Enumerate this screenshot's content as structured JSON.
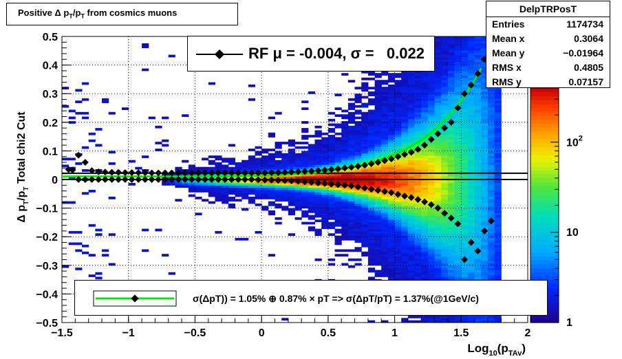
{
  "title": "Positive Δ p_{T}/p_{T} from cosmics muons",
  "stats": {
    "name": "DelpTRPosT",
    "rows": [
      {
        "label": "Entries",
        "value": "1174734"
      },
      {
        "label": "Mean x",
        "value": "0.3064"
      },
      {
        "label": "Mean y",
        "value": "−0.01964"
      },
      {
        "label": "RMS x",
        "value": "0.4805"
      },
      {
        "label": "RMS y",
        "value": "0.07157"
      }
    ]
  },
  "legend_fit": {
    "text": "RF μ = -0.004, σ =   0.022"
  },
  "legend_resolution": {
    "text": "σ(ΔpT)) =  1.05% ⊕  0.87% × pT => σ(ΔpT/pT) =  1.37%(@1GeV/c)"
  },
  "colors": {
    "fit_curve": "#00ee00",
    "markers": "#000000",
    "reference_lines": "#000000"
  },
  "chart_data": {
    "type": "heatmap",
    "title": "Positive Δ p_{T}/p_{T} from cosmics muons",
    "xlabel": "Log_{10}(p_{TAv})",
    "ylabel": "Δ p_{T}/p_{T}  Total chi2 Cut",
    "xlim": [
      -1.5,
      2.0
    ],
    "ylim": [
      -0.5,
      0.5
    ],
    "x_ticks": [
      "−1.5",
      "−1",
      "−0.5",
      "0",
      "0.5",
      "1",
      "1.5",
      "2"
    ],
    "y_ticks": [
      "−0.5",
      "−0.4",
      "−0.3",
      "−0.2",
      "−0.1",
      "0",
      "0.1",
      "0.2",
      "0.3",
      "0.4",
      "0.5"
    ],
    "z_scale": "log",
    "z_ticks": [
      "1",
      "10",
      "10^2"
    ],
    "grid": true,
    "horizontal_lines": [
      0.0,
      0.022
    ],
    "fit_curve": {
      "sigma_const_percent": 1.05,
      "sigma_slope_percent": 0.87
    },
    "mean_points": {
      "x": [
        -1.45,
        -1.42,
        -1.375,
        -1.325,
        -1.275,
        -1.225,
        -1.175,
        -1.125,
        -1.075,
        -1.025,
        -0.975,
        -0.925,
        -0.875,
        -0.825,
        -0.775,
        -0.725,
        -0.675,
        -0.625,
        -0.575,
        -0.525,
        -0.475,
        -0.425,
        -0.375,
        -0.325,
        -0.275,
        -0.225,
        -0.175,
        -0.125,
        -0.075,
        -0.025,
        0.025,
        0.075,
        0.125,
        0.175,
        0.225,
        0.275,
        0.325,
        0.375,
        0.425,
        0.475,
        0.525,
        0.575,
        0.625,
        0.675,
        0.725,
        0.775,
        0.825,
        0.875,
        0.925,
        0.975,
        1.025,
        1.075,
        1.125,
        1.175,
        1.225,
        1.275,
        1.325,
        1.375,
        1.425,
        1.475,
        1.525,
        1.575,
        1.625,
        1.675,
        1.725
      ],
      "y": [
        0.035,
        0.033,
        0.0,
        0.0,
        0.0,
        0.0,
        0.0,
        0.0,
        0.0,
        0.0,
        0.0,
        0.0,
        0.0,
        0.0,
        0.0,
        0.0,
        0.0,
        0.0,
        0.0,
        0.0,
        0.0,
        0.0,
        0.0,
        0.0,
        0.0,
        0.0,
        0.0,
        0.0,
        0.0,
        -0.001,
        -0.002,
        -0.002,
        -0.003,
        -0.004,
        -0.005,
        -0.006,
        -0.008,
        -0.01,
        -0.012,
        -0.014,
        -0.016,
        -0.018,
        -0.02,
        -0.022,
        -0.026,
        -0.03,
        -0.034,
        -0.038,
        -0.042,
        -0.046,
        -0.052,
        -0.058,
        -0.063,
        -0.07,
        -0.078,
        -0.088,
        -0.1,
        -0.118,
        -0.135,
        -0.155,
        -0.28,
        -0.22,
        -0.25,
        -0.18,
        -0.145
      ]
    },
    "sigma_points": {
      "x": [
        -1.375,
        -1.325,
        -1.275,
        -1.225,
        -1.175,
        -1.125,
        -1.075,
        -1.025,
        -0.975,
        -0.925,
        -0.875,
        -0.825,
        -0.775,
        -0.725,
        -0.675,
        -0.625,
        -0.575,
        -0.525,
        -0.475,
        -0.425,
        -0.375,
        -0.325,
        -0.275,
        -0.225,
        -0.175,
        -0.125,
        -0.075,
        -0.025,
        0.025,
        0.075,
        0.125,
        0.175,
        0.225,
        0.275,
        0.325,
        0.375,
        0.425,
        0.475,
        0.525,
        0.575,
        0.625,
        0.675,
        0.725,
        0.775,
        0.825,
        0.875,
        0.925,
        0.975,
        1.025,
        1.075,
        1.125,
        1.175,
        1.225,
        1.275,
        1.325,
        1.375,
        1.425,
        1.475,
        1.525,
        1.575,
        1.625,
        1.675,
        1.725
      ],
      "y": [
        0.085,
        0.06,
        0.031,
        0.027,
        0.026,
        0.025,
        0.025,
        0.024,
        0.024,
        0.024,
        0.024,
        0.023,
        0.023,
        0.023,
        0.023,
        0.023,
        0.023,
        0.023,
        0.023,
        0.023,
        0.023,
        0.023,
        0.023,
        0.023,
        0.023,
        0.023,
        0.023,
        0.023,
        0.023,
        0.024,
        0.024,
        0.025,
        0.026,
        0.027,
        0.028,
        0.029,
        0.031,
        0.033,
        0.035,
        0.037,
        0.04,
        0.043,
        0.046,
        0.05,
        0.055,
        0.06,
        0.066,
        0.072,
        0.08,
        0.088,
        0.095,
        0.105,
        0.12,
        0.14,
        0.16,
        0.18,
        0.2,
        0.25,
        0.3,
        0.33,
        0.37,
        0.42,
        0.45
      ]
    }
  }
}
